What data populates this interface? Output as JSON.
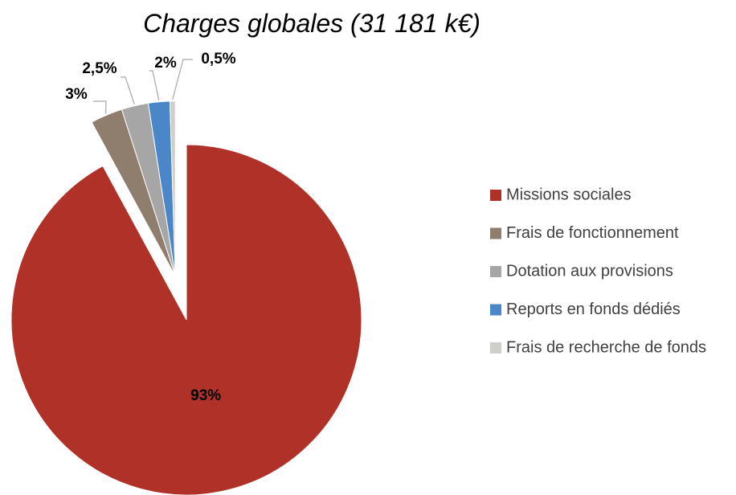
{
  "chart_data": {
    "type": "pie",
    "title": "Charges globales (31 181 k€)",
    "categories": [
      "Missions sociales",
      "Frais de fonctionnement",
      "Dotation aux provisions",
      "Reports en fonds dédiés",
      "Frais de recherche de fonds"
    ],
    "values": [
      93,
      3,
      2.5,
      2,
      0.5
    ],
    "value_labels": [
      "93%",
      "3%",
      "2,5%",
      "2%",
      "0,5%"
    ],
    "colors": [
      "#b03128",
      "#8f7e6e",
      "#a6a6a6",
      "#4a86c8",
      "#cfcecb"
    ],
    "legend": "right"
  }
}
